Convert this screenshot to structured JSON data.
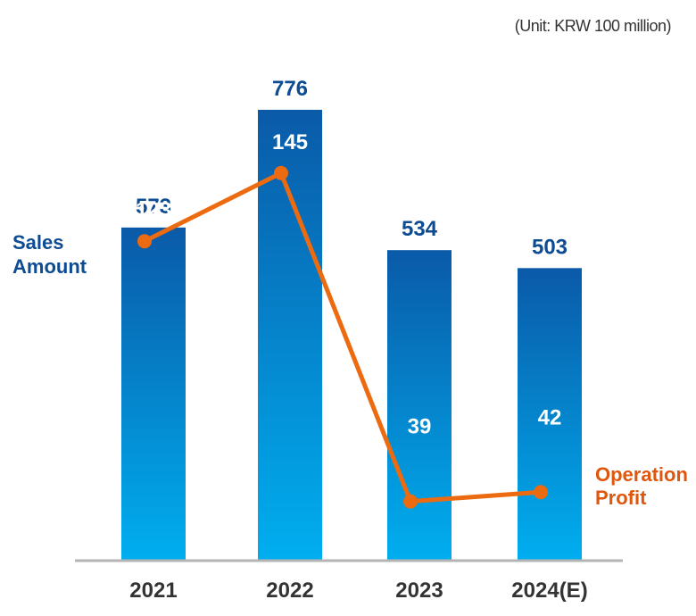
{
  "chart_data": {
    "type": "bar",
    "unit_note": "(Unit: KRW 100 million)",
    "categories": [
      "2021",
      "2022",
      "2023",
      "2024(E)"
    ],
    "series": [
      {
        "name": "Sales Amount",
        "type": "bar",
        "values": [
          573,
          776,
          534,
          503
        ]
      },
      {
        "name": "Operation Profit",
        "type": "line",
        "values": [
          123,
          145,
          39,
          42
        ]
      }
    ],
    "legend": {
      "sales_line1": "Sales",
      "sales_line2": "Amount",
      "profit_line1": "Operation",
      "profit_line2": "Profit"
    },
    "colors": {
      "bar_top": "#0a5aa8",
      "bar_bottom": "#00aeef",
      "sales_label": "#0d4c92",
      "line": "#ec6b10",
      "profit_label": "#e0560c",
      "axis": "#b4b4b4",
      "tick": "#333333"
    }
  }
}
